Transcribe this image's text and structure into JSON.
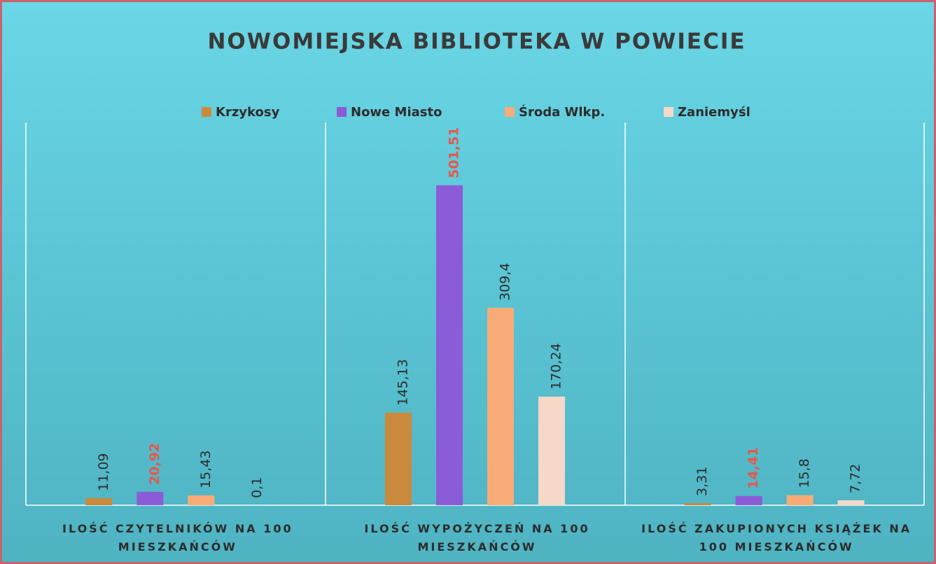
{
  "chart_data": {
    "type": "bar",
    "title": "NOWOMIEJSKA BIBLIOTEKA W POWIECIE",
    "categories": [
      "ILOŚĆ CZYTELNIKÓW NA 100 MIESZKAŃCÓW",
      "ILOŚĆ WYPOŻYCZEŃ NA 100 MIESZKAŃCÓW",
      "ILOŚĆ ZAKUPIONYCH KSIĄŻEK NA 100 MIESZKAŃCÓW"
    ],
    "series": [
      {
        "name": "Krzykosy",
        "color": "#c98a3c",
        "label_color": "#2c2c2c",
        "values": [
          11.09,
          145.13,
          3.31
        ],
        "value_labels": [
          "11,09",
          "145,13",
          "3,31"
        ]
      },
      {
        "name": "Nowe Miasto",
        "color": "#8b5cd8",
        "label_color": "#e8574b",
        "values": [
          20.92,
          501.51,
          14.41
        ],
        "value_labels": [
          "20,92",
          "501,51",
          "14,41"
        ]
      },
      {
        "name": "Środa Wlkp.",
        "color": "#f8ab77",
        "label_color": "#2c2c2c",
        "values": [
          15.43,
          309.4,
          15.8
        ],
        "value_labels": [
          "15,43",
          "309,4",
          "15,8"
        ]
      },
      {
        "name": "Zaniemyśl",
        "color": "#f6d8c8",
        "label_color": "#2c2c2c",
        "values": [
          0.1,
          170.24,
          7.72
        ],
        "value_labels": [
          "0,1",
          "170,24",
          "7,72"
        ]
      }
    ],
    "ylim": [
      0,
      600
    ]
  }
}
